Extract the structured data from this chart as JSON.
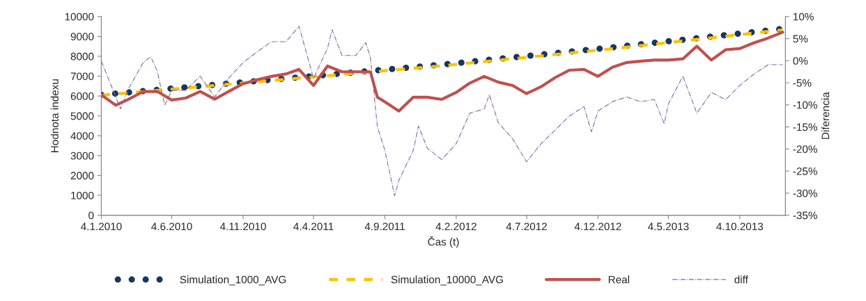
{
  "chart_data": {
    "type": "line",
    "xlabel": "Čas (t)",
    "ylabel": "Hodnota indexu",
    "y2label": "Diferencia",
    "xlim": [
      "2010-01-04",
      "2014-01-10"
    ],
    "xticks": [
      {
        "value": "2010-01-04",
        "label": "4.1.2010"
      },
      {
        "value": "2010-06-04",
        "label": "4.6.2010"
      },
      {
        "value": "2010-11-04",
        "label": "4.11.2010"
      },
      {
        "value": "2011-04-04",
        "label": "4.4.2011"
      },
      {
        "value": "2011-09-04",
        "label": "4.9.2011"
      },
      {
        "value": "2012-02-04",
        "label": "4.2.2012"
      },
      {
        "value": "2012-07-04",
        "label": "4.7.2012"
      },
      {
        "value": "2012-12-04",
        "label": "4.12.2012"
      },
      {
        "value": "2013-05-04",
        "label": "4.5.2013"
      },
      {
        "value": "2013-10-04",
        "label": "4.10.2013"
      }
    ],
    "ylim": [
      0,
      10000
    ],
    "yticks": [
      0,
      1000,
      2000,
      3000,
      4000,
      5000,
      6000,
      7000,
      8000,
      9000,
      10000
    ],
    "y2lim": [
      -35,
      10
    ],
    "y2ticks": [
      {
        "value": -35,
        "label": "-35%"
      },
      {
        "value": -30,
        "label": "-30%"
      },
      {
        "value": -25,
        "label": "-25%"
      },
      {
        "value": -20,
        "label": "-20%"
      },
      {
        "value": -15,
        "label": "-15%"
      },
      {
        "value": -10,
        "label": "-10%"
      },
      {
        "value": -5,
        "label": "-5%"
      },
      {
        "value": 0,
        "label": "0%"
      },
      {
        "value": 5,
        "label": "5%"
      },
      {
        "value": 10,
        "label": "10%"
      }
    ],
    "grid": false,
    "legend": "bottom",
    "series": [
      {
        "name": "Simulation_1000_AVG",
        "color": "#17375e",
        "line_style": "dotted",
        "x": [
          "2010-01-04",
          "2011-01-04",
          "2012-01-04",
          "2013-01-04",
          "2014-01-04"
        ],
        "values": [
          6060,
          6820,
          7580,
          8450,
          9380
        ]
      },
      {
        "name": "Simulation_10000_AVG",
        "color": "#ffc000",
        "line_style": "dashed",
        "x": [
          "2010-01-04",
          "2011-01-04",
          "2012-01-04",
          "2013-01-04",
          "2014-01-04"
        ],
        "values": [
          6040,
          6780,
          7520,
          8380,
          9330
        ]
      },
      {
        "name": "Real",
        "color": "#c0504d",
        "line_style": "solid",
        "x": [
          "2010-01-04",
          "2010-02-04",
          "2010-03-04",
          "2010-04-04",
          "2010-05-04",
          "2010-06-04",
          "2010-07-04",
          "2010-08-04",
          "2010-09-04",
          "2010-10-04",
          "2010-11-04",
          "2010-12-04",
          "2011-01-04",
          "2011-02-04",
          "2011-03-04",
          "2011-04-04",
          "2011-05-04",
          "2011-06-04",
          "2011-07-04",
          "2011-08-04",
          "2011-08-19",
          "2011-09-04",
          "2011-10-04",
          "2011-11-04",
          "2011-12-04",
          "2012-01-04",
          "2012-02-04",
          "2012-03-04",
          "2012-04-04",
          "2012-05-04",
          "2012-06-04",
          "2012-07-04",
          "2012-08-04",
          "2012-09-04",
          "2012-10-04",
          "2012-11-04",
          "2012-12-04",
          "2013-01-04",
          "2013-02-04",
          "2013-03-04",
          "2013-04-04",
          "2013-05-04",
          "2013-06-04",
          "2013-07-04",
          "2013-08-04",
          "2013-09-04",
          "2013-10-04",
          "2013-11-04",
          "2013-12-04",
          "2014-01-04"
        ],
        "values": [
          6060,
          5535,
          5840,
          6230,
          6230,
          5800,
          5900,
          6230,
          5840,
          6230,
          6620,
          6820,
          6990,
          7110,
          7340,
          6530,
          7510,
          7220,
          7220,
          7220,
          5940,
          5710,
          5240,
          5940,
          5940,
          5830,
          6180,
          6650,
          6990,
          6700,
          6530,
          6120,
          6470,
          6940,
          7300,
          7340,
          6990,
          7450,
          7690,
          7750,
          7810,
          7810,
          7870,
          8510,
          7810,
          8330,
          8390,
          8680,
          8920,
          9210
        ]
      },
      {
        "name": "diff",
        "color": "#8064a2",
        "line_style": "dashdot",
        "axis": "y2",
        "x": [
          "2010-01-04",
          "2010-02-04",
          "2010-02-14",
          "2010-03-04",
          "2010-04-04",
          "2010-04-20",
          "2010-05-04",
          "2010-05-20",
          "2010-06-04",
          "2010-07-04",
          "2010-08-04",
          "2010-09-04",
          "2010-10-04",
          "2010-11-04",
          "2010-12-04",
          "2011-01-04",
          "2011-02-04",
          "2011-03-04",
          "2011-04-04",
          "2011-05-04",
          "2011-05-14",
          "2011-06-04",
          "2011-07-04",
          "2011-07-25",
          "2011-08-04",
          "2011-08-19",
          "2011-09-04",
          "2011-09-25",
          "2011-10-04",
          "2011-11-04",
          "2011-11-15",
          "2011-12-04",
          "2012-01-04",
          "2012-02-04",
          "2012-03-04",
          "2012-04-04",
          "2012-04-15",
          "2012-05-04",
          "2012-06-04",
          "2012-07-04",
          "2012-08-04",
          "2012-09-04",
          "2012-10-04",
          "2012-11-04",
          "2012-11-20",
          "2012-12-04",
          "2013-01-04",
          "2013-02-04",
          "2013-03-04",
          "2013-04-04",
          "2013-04-25",
          "2013-05-04",
          "2013-06-04",
          "2013-07-04",
          "2013-08-04",
          "2013-09-04",
          "2013-10-04",
          "2013-11-04",
          "2013-12-04",
          "2014-01-04"
        ],
        "values": [
          -0.1,
          -8.2,
          -10.9,
          -6.2,
          -0.4,
          0.9,
          -2.4,
          -10.1,
          -6.7,
          -6.7,
          -3.5,
          -8.2,
          -4.0,
          -0.4,
          2.0,
          4.3,
          4.3,
          7.8,
          -4.0,
          2.8,
          7.0,
          1.2,
          1.2,
          4.1,
          0.7,
          -15.0,
          -20.3,
          -30.6,
          -27.1,
          -20.3,
          -14.8,
          -19.8,
          -22.4,
          -18.8,
          -11.9,
          -10.9,
          -7.7,
          -14.0,
          -17.7,
          -22.9,
          -18.8,
          -15.6,
          -12.5,
          -10.4,
          -16.1,
          -11.4,
          -9.3,
          -8.2,
          -9.3,
          -8.8,
          -14.3,
          -9.8,
          -3.5,
          -11.9,
          -7.2,
          -8.8,
          -5.6,
          -3.0,
          -0.9,
          -0.9
        ]
      }
    ]
  }
}
